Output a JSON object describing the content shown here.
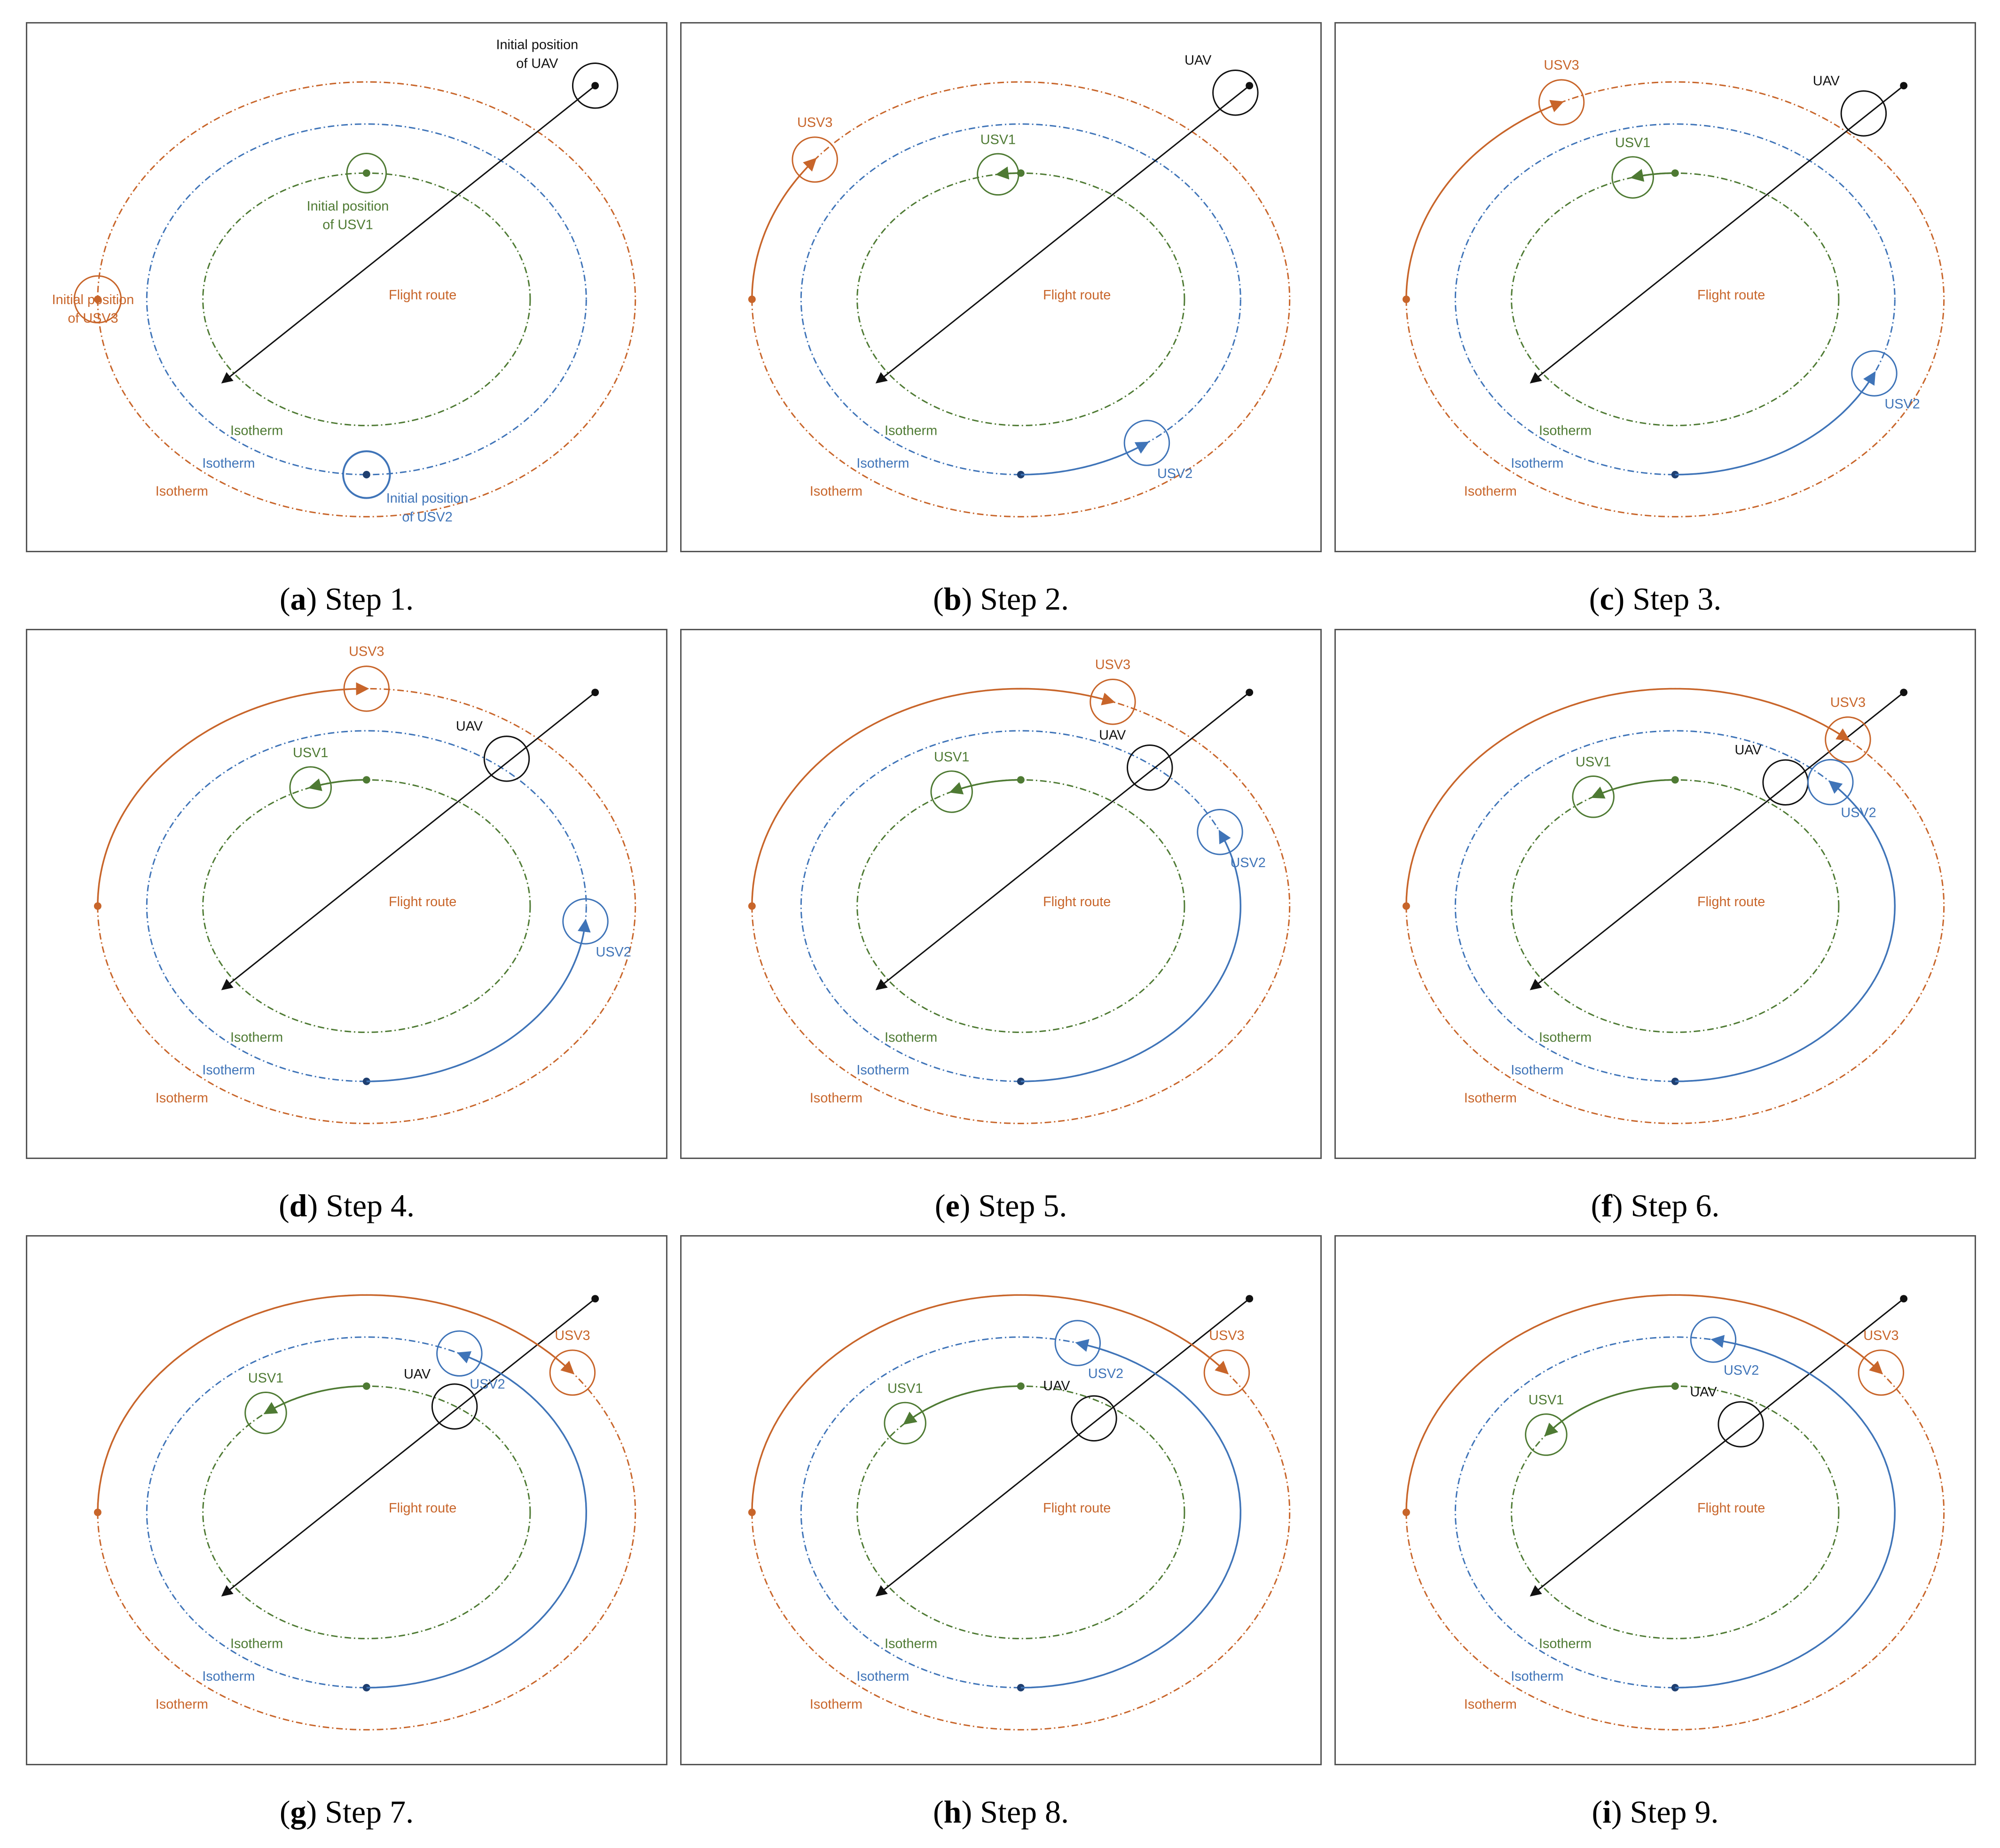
{
  "colors": {
    "orange": "#c8652a",
    "blue": "#3f74b8",
    "green": "#4e7a33",
    "black": "#111111",
    "frame": "#555555"
  },
  "labels": {
    "flight_route": "Flight route",
    "isotherm": "Isotherm",
    "uav": "UAV",
    "usv1": "USV1",
    "usv2": "USV2",
    "usv3": "USV3",
    "init_uav_1": "Initial position",
    "init_uav_2": "of UAV",
    "init_usv1_1": "Initial position",
    "init_usv1_2": "of USV1",
    "init_usv2_1": "Initial position",
    "init_usv2_2": "of USV2",
    "init_usv3_1": "Initial position",
    "init_usv3_2": "of USV3"
  },
  "panels": [
    {
      "letter": "a",
      "caption": "Step 1."
    },
    {
      "letter": "b",
      "caption": "Step 2."
    },
    {
      "letter": "c",
      "caption": "Step 3."
    },
    {
      "letter": "d",
      "caption": "Step 4."
    },
    {
      "letter": "e",
      "caption": "Step 5."
    },
    {
      "letter": "f",
      "caption": "Step 6."
    },
    {
      "letter": "g",
      "caption": "Step 7."
    },
    {
      "letter": "h",
      "caption": "Step 8."
    },
    {
      "letter": "i",
      "caption": "Step 9."
    }
  ]
}
